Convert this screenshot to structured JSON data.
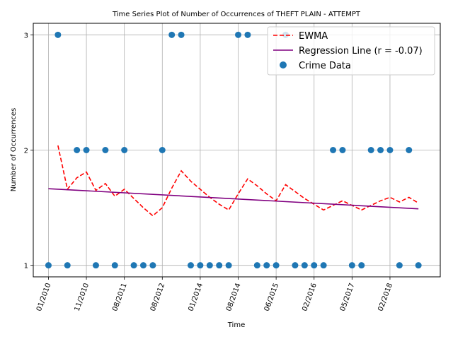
{
  "chart_data": {
    "type": "scatter",
    "title": "Time Series Plot of Number of Occurrences of THEFT PLAIN - ATTEMPT",
    "xlabel": "Time",
    "ylabel": "Number of Occurrences",
    "xlim": [
      -1.6,
      41.3
    ],
    "ylim": [
      0.9,
      3.1
    ],
    "grid": true,
    "x_ticks": [
      {
        "pos": 0,
        "label": "01/2010"
      },
      {
        "pos": 4,
        "label": "11/2010"
      },
      {
        "pos": 8,
        "label": "08/2011"
      },
      {
        "pos": 12,
        "label": "08/2012"
      },
      {
        "pos": 16,
        "label": "01/2014"
      },
      {
        "pos": 20,
        "label": "08/2014"
      },
      {
        "pos": 24,
        "label": "06/2015"
      },
      {
        "pos": 28,
        "label": "02/2016"
      },
      {
        "pos": 32,
        "label": "05/2017"
      },
      {
        "pos": 36,
        "label": "02/2018"
      }
    ],
    "y_ticks": [
      1,
      2,
      3
    ],
    "series": [
      {
        "name": "Crime Data",
        "kind": "scatter",
        "color": "#1f77b4",
        "x": [
          0,
          1,
          2,
          3,
          4,
          5,
          6,
          7,
          8,
          9,
          10,
          11,
          12,
          13,
          14,
          15,
          16,
          17,
          18,
          19,
          20,
          21,
          22,
          23,
          24,
          25,
          26,
          27,
          28,
          29,
          30,
          31,
          32,
          33,
          34,
          35,
          36,
          37,
          38,
          39
        ],
        "y": [
          1,
          3,
          1,
          2,
          2,
          1,
          2,
          1,
          2,
          1,
          1,
          1,
          2,
          3,
          3,
          1,
          1,
          1,
          1,
          1,
          3,
          3,
          1,
          1,
          1,
          3,
          1,
          1,
          1,
          1,
          2,
          2,
          1,
          1,
          2,
          2,
          2,
          1,
          2,
          1
        ]
      },
      {
        "name": "EWMA",
        "kind": "line",
        "color": "#ff0000",
        "dash": "dashed",
        "x": [
          1,
          2,
          3,
          4,
          5,
          6,
          7,
          8,
          9,
          10,
          11,
          12,
          13,
          14,
          15,
          16,
          17,
          18,
          19,
          20,
          21,
          22,
          23,
          24,
          25,
          26,
          27,
          28,
          29,
          30,
          31,
          32,
          33,
          34,
          35,
          36,
          37,
          38,
          39
        ],
        "y": [
          2.04,
          1.66,
          1.76,
          1.81,
          1.65,
          1.71,
          1.6,
          1.66,
          1.58,
          1.5,
          1.43,
          1.5,
          1.67,
          1.82,
          1.73,
          1.66,
          1.59,
          1.53,
          1.48,
          1.62,
          1.75,
          1.69,
          1.62,
          1.56,
          1.7,
          1.64,
          1.58,
          1.53,
          1.48,
          1.52,
          1.56,
          1.52,
          1.48,
          1.52,
          1.56,
          1.59,
          1.55,
          1.59,
          1.54
        ]
      },
      {
        "name": "Regression Line (r = -0.07)",
        "kind": "line",
        "color": "#800080",
        "dash": "solid",
        "x": [
          0,
          39
        ],
        "y": [
          1.665,
          1.49
        ]
      }
    ],
    "legend": {
      "position": "top-right",
      "entries": [
        {
          "label": "EWMA",
          "marker": "dashed-line",
          "color": "#ff0000"
        },
        {
          "label": "Regression Line (r = -0.07)",
          "marker": "line",
          "color": "#800080"
        },
        {
          "label": "Crime Data",
          "marker": "dot",
          "color": "#1f77b4"
        }
      ]
    }
  }
}
